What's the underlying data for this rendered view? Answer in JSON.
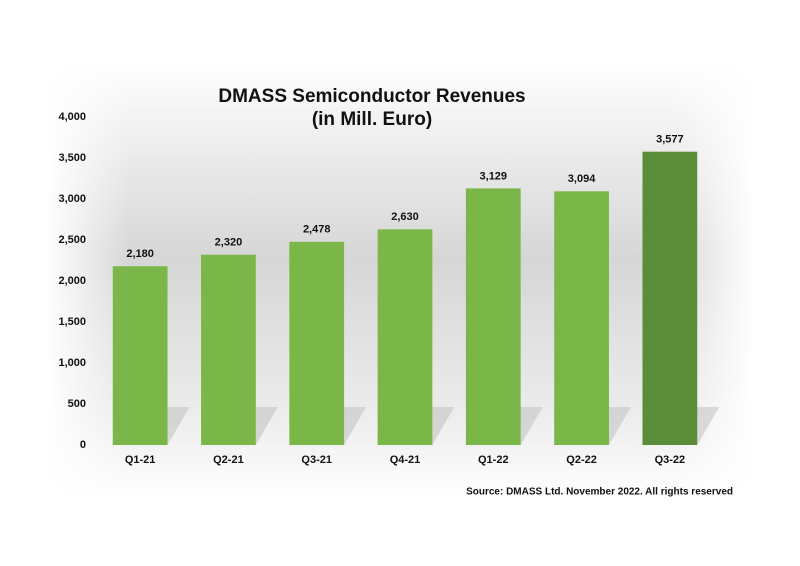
{
  "chart_data": {
    "type": "bar",
    "title": "DMASS Semiconductor Revenues",
    "subtitle": "(in Mill. Euro)",
    "categories": [
      "Q1-21",
      "Q2-21",
      "Q3-21",
      "Q4-21",
      "Q1-22",
      "Q2-22",
      "Q3-22"
    ],
    "values": [
      2180,
      2320,
      2478,
      2630,
      3129,
      3094,
      3577
    ],
    "value_labels": [
      "2,180",
      "2,320",
      "2,478",
      "2,630",
      "3,129",
      "3,094",
      "3,577"
    ],
    "colors": [
      "#7ab648",
      "#7ab648",
      "#7ab648",
      "#7ab648",
      "#7ab648",
      "#7ab648",
      "#5b8c3a"
    ],
    "ylim": [
      0,
      4000
    ],
    "yticks": [
      0,
      500,
      {
        "value": 1000,
        "label": "1,000"
      },
      {
        "value": 1500,
        "label": "1,500"
      },
      {
        "value": 2000,
        "label": "2,000"
      },
      {
        "value": 2500,
        "label": "2,500"
      },
      {
        "value": 3000,
        "label": "3,000"
      },
      {
        "value": 3500,
        "label": "3,500"
      },
      {
        "value": 4000,
        "label": "4,000"
      }
    ],
    "grid": false,
    "source": "Source: DMASS Ltd. November 2022. All rights reserved"
  }
}
